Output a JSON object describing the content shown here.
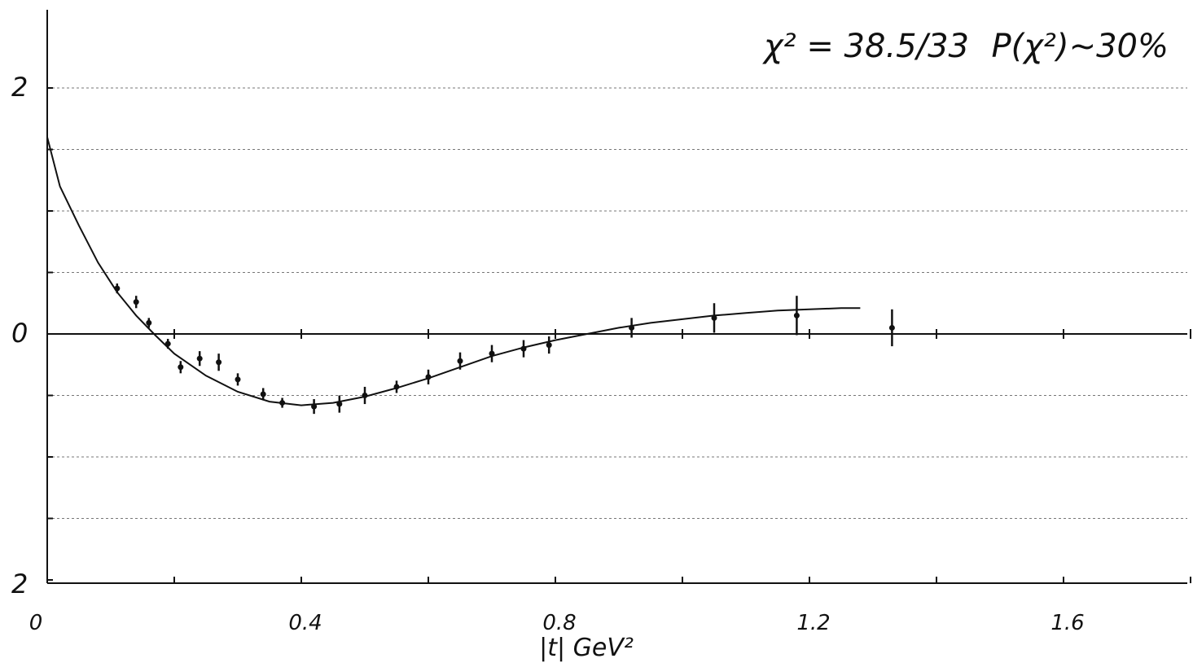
{
  "chart_data": {
    "type": "scatter",
    "title": "",
    "xlabel": "|t| GeV²",
    "ylabel": "",
    "xlim": [
      0,
      1.8
    ],
    "ylim": [
      -2,
      2
    ],
    "x_ticks": [
      "0",
      "0.4",
      "0.8",
      "1.2",
      "1.6"
    ],
    "x_tick_values": [
      0,
      0.4,
      0.8,
      1.2,
      1.6
    ],
    "y_ticks": [
      "2",
      "0",
      "2"
    ],
    "y_tick_values": [
      2,
      0,
      -2
    ],
    "grid": true,
    "annotations": {
      "chi2": "χ² = 38.5/33",
      "prob": "P(χ²)~30%"
    },
    "series": [
      {
        "kind": "points_with_errors",
        "points": [
          {
            "x": 0.11,
            "y": 0.37,
            "err": 0.04
          },
          {
            "x": 0.14,
            "y": 0.26,
            "err": 0.05
          },
          {
            "x": 0.16,
            "y": 0.09,
            "err": 0.04
          },
          {
            "x": 0.19,
            "y": -0.08,
            "err": 0.04
          },
          {
            "x": 0.21,
            "y": -0.27,
            "err": 0.05
          },
          {
            "x": 0.24,
            "y": -0.2,
            "err": 0.06
          },
          {
            "x": 0.27,
            "y": -0.23,
            "err": 0.07
          },
          {
            "x": 0.3,
            "y": -0.37,
            "err": 0.05
          },
          {
            "x": 0.34,
            "y": -0.49,
            "err": 0.05
          },
          {
            "x": 0.37,
            "y": -0.56,
            "err": 0.04
          },
          {
            "x": 0.42,
            "y": -0.59,
            "err": 0.06
          },
          {
            "x": 0.46,
            "y": -0.57,
            "err": 0.07
          },
          {
            "x": 0.5,
            "y": -0.5,
            "err": 0.07
          },
          {
            "x": 0.55,
            "y": -0.43,
            "err": 0.05
          },
          {
            "x": 0.6,
            "y": -0.35,
            "err": 0.06
          },
          {
            "x": 0.65,
            "y": -0.22,
            "err": 0.07
          },
          {
            "x": 0.7,
            "y": -0.16,
            "err": 0.07
          },
          {
            "x": 0.75,
            "y": -0.12,
            "err": 0.07
          },
          {
            "x": 0.79,
            "y": -0.09,
            "err": 0.07
          },
          {
            "x": 0.92,
            "y": 0.05,
            "err": 0.08
          },
          {
            "x": 1.05,
            "y": 0.13,
            "err": 0.12
          },
          {
            "x": 1.18,
            "y": 0.15,
            "err": 0.16
          },
          {
            "x": 1.33,
            "y": 0.05,
            "err": 0.15
          }
        ]
      },
      {
        "kind": "fit_curve",
        "x": [
          0,
          0.02,
          0.05,
          0.08,
          0.11,
          0.14,
          0.17,
          0.2,
          0.25,
          0.3,
          0.35,
          0.4,
          0.45,
          0.5,
          0.55,
          0.6,
          0.65,
          0.7,
          0.75,
          0.8,
          0.85,
          0.9,
          0.95,
          1.0,
          1.05,
          1.1,
          1.15,
          1.2,
          1.25,
          1.28
        ],
        "y": [
          1.6,
          1.2,
          0.88,
          0.58,
          0.34,
          0.15,
          -0.01,
          -0.16,
          -0.34,
          -0.47,
          -0.55,
          -0.58,
          -0.56,
          -0.51,
          -0.44,
          -0.36,
          -0.27,
          -0.18,
          -0.11,
          -0.05,
          0.0,
          0.05,
          0.09,
          0.12,
          0.15,
          0.17,
          0.19,
          0.2,
          0.21,
          0.21
        ]
      }
    ]
  }
}
